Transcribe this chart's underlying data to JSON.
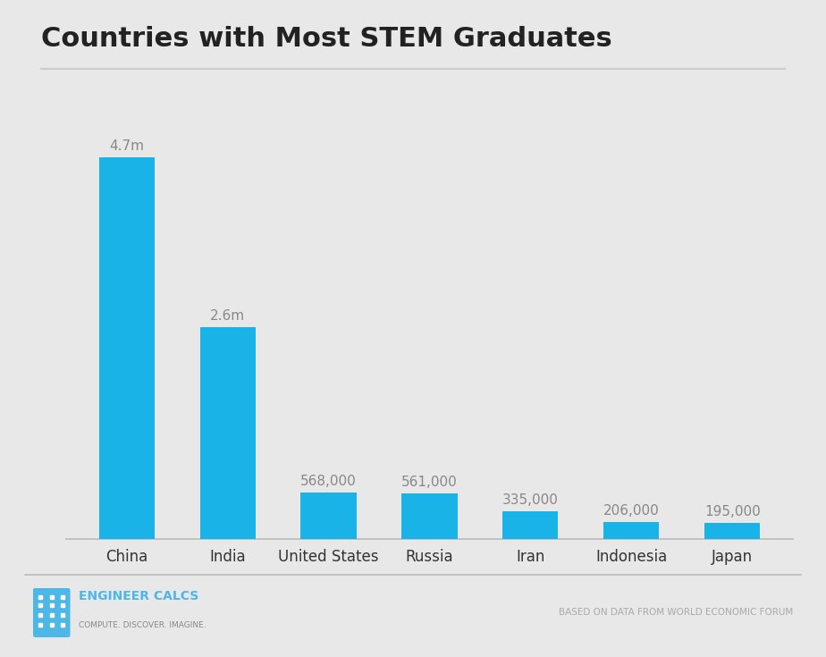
{
  "title": "Countries with Most STEM Graduates",
  "categories": [
    "China",
    "India",
    "United States",
    "Russia",
    "Iran",
    "Indonesia",
    "Japan"
  ],
  "values": [
    4700000,
    2600000,
    568000,
    561000,
    335000,
    206000,
    195000
  ],
  "labels": [
    "4.7m",
    "2.6m",
    "568,000",
    "561,000",
    "335,000",
    "206,000",
    "195,000"
  ],
  "bar_color": "#1ab3e8",
  "background_color": "#e8e8e8",
  "title_fontsize": 22,
  "label_fontsize": 11,
  "tick_fontsize": 12,
  "footer_left": "ENGINEER CALCS",
  "footer_left_sub": "COMPUTE. DISCOVER. IMAGINE.",
  "footer_right": "BASED ON DATA FROM WORLD ECONOMIC FORUM",
  "footer_color": "#4db8e8",
  "footer_sub_color": "#888888",
  "footer_right_color": "#aaaaaa",
  "label_color": "#888888",
  "title_color": "#222222",
  "tick_color": "#333333"
}
